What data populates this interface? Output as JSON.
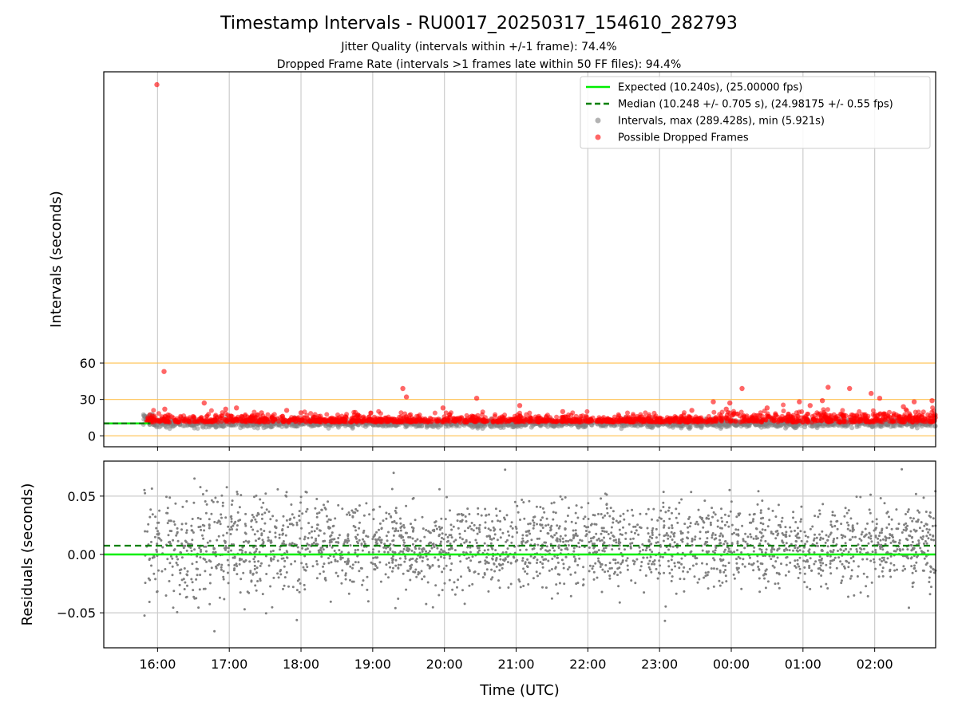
{
  "figure": {
    "title": "Timestamp Intervals - RU0017_20250317_154610_282793",
    "subtitle_jitter": "Jitter Quality (intervals within +/-1 frame): 74.4%",
    "subtitle_dropped": "Dropped Frame Rate (intervals >1 frames late within 50 FF files): 94.4%"
  },
  "colors": {
    "expected": "#00ee00",
    "median": "#008000",
    "interval_points": "#808080",
    "dropped_points": "#ff0000",
    "threshold_lines": "#ffc04d",
    "grid": "#cccccc"
  },
  "chart_data": [
    {
      "type": "scatter",
      "panel": "intervals",
      "ylabel": "Intervals (seconds)",
      "xlim_hours": [
        15.25,
        26.85
      ],
      "ylim": [
        -9,
        300
      ],
      "y_ticks": [
        0,
        30,
        60
      ],
      "y_tick_labels": [
        "0",
        "30",
        "60"
      ],
      "horizontal_threshold_lines": [
        0,
        30,
        60
      ],
      "grid_vertical": true,
      "legend_placement": "upper-right",
      "legend": [
        {
          "label": "Expected (10.240s), (25.00000 fps)",
          "style": "solid-line",
          "color_key": "expected"
        },
        {
          "label": "Median (10.248 +/- 0.705 s), (24.98175 +/- 0.55 fps)",
          "style": "dashed-line",
          "color_key": "median"
        },
        {
          "label": "Intervals, max (289.428s), min (5.921s)",
          "style": "marker",
          "color_key": "interval_points"
        },
        {
          "label": "Possible Dropped Frames",
          "style": "marker",
          "color_key": "dropped_points"
        }
      ],
      "expected_interval_s": 10.24,
      "median_interval_s": 10.248,
      "series": [
        {
          "name": "Intervals, max (289.428s), min (5.921s)",
          "x_range_hours": [
            15.8,
            26.85
          ],
          "y_range": [
            5.921,
            18
          ],
          "point_count": 1800
        },
        {
          "name": "Possible Dropped Frames",
          "x_range_hours": [
            15.85,
            26.85
          ],
          "y_base": 11.2,
          "y_spread": 9,
          "point_count": 1700,
          "outliers": [
            {
              "x": 15.99,
              "y": 289.4
            },
            {
              "x": 16.09,
              "y": 53
            },
            {
              "x": 16.1,
              "y": 22
            },
            {
              "x": 16.65,
              "y": 27
            },
            {
              "x": 16.95,
              "y": 22
            },
            {
              "x": 17.1,
              "y": 23
            },
            {
              "x": 17.45,
              "y": 19
            },
            {
              "x": 17.8,
              "y": 21
            },
            {
              "x": 18.0,
              "y": 19
            },
            {
              "x": 19.42,
              "y": 39
            },
            {
              "x": 19.47,
              "y": 32
            },
            {
              "x": 19.98,
              "y": 23
            },
            {
              "x": 20.45,
              "y": 31
            },
            {
              "x": 21.05,
              "y": 25
            },
            {
              "x": 21.65,
              "y": 20
            },
            {
              "x": 23.45,
              "y": 21
            },
            {
              "x": 23.75,
              "y": 28
            },
            {
              "x": 23.93,
              "y": 22
            },
            {
              "x": 23.98,
              "y": 27
            },
            {
              "x": 24.15,
              "y": 39
            },
            {
              "x": 24.5,
              "y": 23
            },
            {
              "x": 24.95,
              "y": 28
            },
            {
              "x": 25.1,
              "y": 25
            },
            {
              "x": 25.27,
              "y": 29
            },
            {
              "x": 25.35,
              "y": 40
            },
            {
              "x": 25.65,
              "y": 39
            },
            {
              "x": 25.95,
              "y": 35
            },
            {
              "x": 26.07,
              "y": 31
            },
            {
              "x": 26.4,
              "y": 24
            },
            {
              "x": 26.55,
              "y": 28
            },
            {
              "x": 26.8,
              "y": 29
            }
          ]
        }
      ]
    },
    {
      "type": "scatter",
      "panel": "residuals",
      "xlabel": "Time (UTC)",
      "ylabel": "Residuals (seconds)",
      "xlim_hours": [
        15.25,
        26.85
      ],
      "ylim": [
        -0.08,
        0.08
      ],
      "y_ticks": [
        -0.05,
        0,
        0.05
      ],
      "y_tick_labels": [
        "−0.05",
        "0.00",
        "0.05"
      ],
      "x_ticks_hours": [
        16,
        17,
        18,
        19,
        20,
        21,
        22,
        23,
        24,
        25,
        26
      ],
      "x_tick_labels": [
        "16:00",
        "17:00",
        "18:00",
        "19:00",
        "20:00",
        "21:00",
        "22:00",
        "23:00",
        "00:00",
        "01:00",
        "02:00"
      ],
      "grid": true,
      "expected_residual": 0.0,
      "median_residual": 0.0075,
      "series": [
        {
          "x_range_hours": [
            15.8,
            26.85
          ],
          "y_center": 0.008,
          "y_spread": 0.02,
          "point_count": 2600
        }
      ]
    }
  ]
}
